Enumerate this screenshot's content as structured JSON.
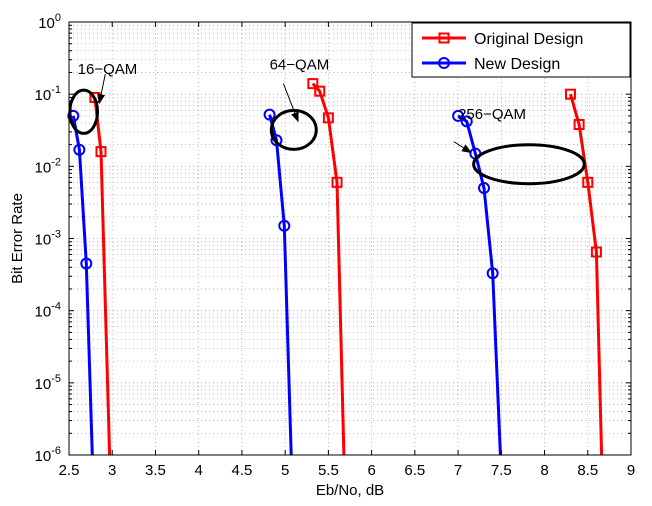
{
  "chart_data": {
    "type": "line",
    "title": "",
    "xlabel": "Eb/No, dB",
    "ylabel": "Bit Error Rate",
    "xlim": [
      2.5,
      9
    ],
    "ylim": [
      1e-06,
      1
    ],
    "yscale": "log",
    "grid": true,
    "x_ticks": [
      "2.5",
      "3",
      "3.5",
      "4",
      "4.5",
      "5",
      "5.5",
      "6",
      "6.5",
      "7",
      "7.5",
      "8",
      "8.5",
      "9"
    ],
    "x_tick_values": [
      2.5,
      3,
      3.5,
      4,
      4.5,
      5,
      5.5,
      6,
      6.5,
      7,
      7.5,
      8,
      8.5,
      9
    ],
    "y_tick_exponents": [
      "0",
      "-1",
      "-2",
      "-3",
      "-4",
      "-5",
      "-6"
    ],
    "y_tick_base": "10",
    "legend_position": "top-right",
    "series": [
      {
        "name": "Original Design",
        "color": "#ff0000",
        "marker": "square",
        "segments": [
          {
            "x": [
              2.8,
              2.87,
              2.97
            ],
            "y": [
              0.09,
              0.016,
              1e-06
            ]
          },
          {
            "x": [
              5.32,
              5.4,
              5.5,
              5.6,
              5.68
            ],
            "y": [
              0.14,
              0.11,
              0.047,
              0.006,
              1e-06
            ]
          },
          {
            "x": [
              8.3,
              8.4,
              8.5,
              8.6,
              8.66
            ],
            "y": [
              0.1,
              0.038,
              0.006,
              0.00065,
              1e-06
            ]
          }
        ],
        "marker_points": [
          [
            2.8,
            0.09
          ],
          [
            2.87,
            0.016
          ],
          [
            5.32,
            0.14
          ],
          [
            5.4,
            0.11
          ],
          [
            5.5,
            0.047
          ],
          [
            5.6,
            0.006
          ],
          [
            8.3,
            0.1
          ],
          [
            8.4,
            0.038
          ],
          [
            8.5,
            0.006
          ],
          [
            8.6,
            0.00065
          ]
        ]
      },
      {
        "name": "New Design",
        "color": "#0000ff",
        "marker": "circle",
        "segments": [
          {
            "x": [
              2.55,
              2.62,
              2.7,
              2.77
            ],
            "y": [
              0.05,
              0.017,
              0.00045,
              1e-06
            ]
          },
          {
            "x": [
              4.82,
              4.9,
              4.99,
              5.07
            ],
            "y": [
              0.052,
              0.023,
              0.0015,
              1e-06
            ]
          },
          {
            "x": [
              7.0,
              7.1,
              7.2,
              7.3,
              7.4,
              7.49
            ],
            "y": [
              0.05,
              0.042,
              0.015,
              0.005,
              0.00033,
              1e-06
            ]
          }
        ],
        "marker_points": [
          [
            2.55,
            0.05
          ],
          [
            2.62,
            0.017
          ],
          [
            2.7,
            0.00045
          ],
          [
            4.82,
            0.052
          ],
          [
            4.9,
            0.023
          ],
          [
            4.99,
            0.0015
          ],
          [
            7.0,
            0.05
          ],
          [
            7.1,
            0.042
          ],
          [
            7.2,
            0.015
          ],
          [
            7.3,
            0.005
          ],
          [
            7.4,
            0.00033
          ]
        ]
      }
    ],
    "annotations": [
      {
        "label": "16−QAM",
        "text_x": 2.6,
        "text_y": 0.19,
        "ellipse_x": 2.67,
        "ellipse_y": 0.057,
        "ellipse_rx": 0.16,
        "ellipse_ry": 0.3,
        "arrow_from": [
          2.92,
          0.19
        ],
        "arrow_to": [
          2.85,
          0.075
        ]
      },
      {
        "label": "64−QAM",
        "text_x": 4.82,
        "text_y": 0.22,
        "ellipse_x": 5.1,
        "ellipse_y": 0.032,
        "ellipse_rx": 0.26,
        "ellipse_ry": 0.27,
        "arrow_from": [
          4.98,
          0.14
        ],
        "arrow_to": [
          5.15,
          0.042
        ]
      },
      {
        "label": "256−QAM",
        "text_x": 7.0,
        "text_y": 0.045,
        "ellipse_x": 7.82,
        "ellipse_y": 0.0107,
        "ellipse_rx": 0.64,
        "ellipse_ry": 0.27,
        "arrow_from": [
          6.95,
          0.022
        ],
        "arrow_to": [
          7.15,
          0.0155
        ]
      }
    ]
  }
}
